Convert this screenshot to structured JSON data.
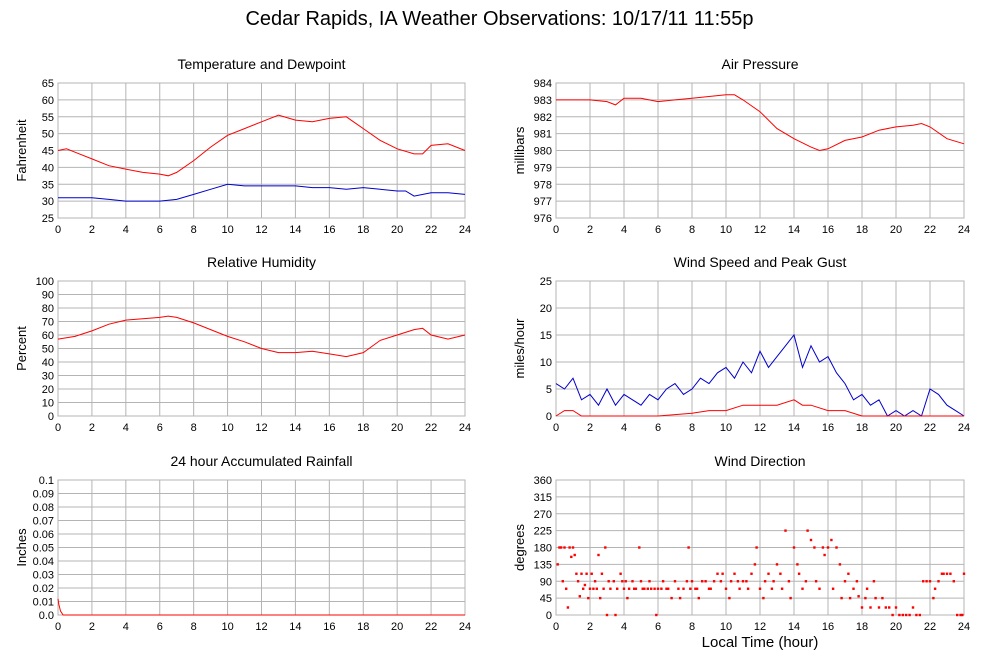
{
  "title": "Cedar Rapids, IA Weather Observations: 10/17/11 11:55p",
  "x_axis_label": "Local Time (hour)",
  "colors": {
    "red": "#ff0000",
    "blue": "#0000cc",
    "grid": "#b4b4b4"
  },
  "chart_data": [
    {
      "id": "temperature",
      "type": "line",
      "title": "Temperature and Dewpoint",
      "ylabel": "Fahrenheit",
      "xlim": [
        0,
        24
      ],
      "ylim": [
        25,
        65
      ],
      "xticks": [
        "0",
        "2",
        "4",
        "6",
        "8",
        "10",
        "12",
        "14",
        "16",
        "18",
        "20",
        "22",
        "24"
      ],
      "yticks": [
        "25",
        "30",
        "35",
        "40",
        "45",
        "50",
        "55",
        "60",
        "65"
      ],
      "grid": true,
      "series": [
        {
          "color": "#ff0000",
          "x": [
            0,
            0.5,
            1,
            2,
            3,
            4,
            5,
            6,
            6.5,
            7,
            8,
            9,
            10,
            11,
            12,
            13,
            14,
            15,
            16,
            17,
            18,
            19,
            20,
            21,
            21.5,
            22,
            23,
            24
          ],
          "y": [
            45,
            45.5,
            44.5,
            42.5,
            40.5,
            39.5,
            38.5,
            38,
            37.5,
            38.5,
            42,
            46,
            49.5,
            51.5,
            53.5,
            55.5,
            54,
            53.5,
            54.5,
            55,
            51.5,
            48,
            45.5,
            44,
            44,
            46.5,
            47,
            45
          ]
        },
        {
          "color": "#0000cc",
          "x": [
            0,
            1,
            2,
            3,
            4,
            5,
            6,
            7,
            8,
            9,
            10,
            11,
            12,
            13,
            14,
            15,
            16,
            17,
            18,
            19,
            20,
            20.5,
            21,
            22,
            23,
            24
          ],
          "y": [
            31,
            31,
            31,
            30.5,
            30,
            30,
            30,
            30.5,
            32,
            33.5,
            35,
            34.5,
            34.5,
            34.5,
            34.5,
            34,
            34,
            33.5,
            34,
            33.5,
            33,
            33,
            31.5,
            32.5,
            32.5,
            32
          ]
        }
      ]
    },
    {
      "id": "pressure",
      "type": "line",
      "title": "Air Pressure",
      "ylabel": "millibars",
      "xlim": [
        0,
        24
      ],
      "ylim": [
        976,
        984
      ],
      "xticks": [
        "0",
        "2",
        "4",
        "6",
        "8",
        "10",
        "12",
        "14",
        "16",
        "18",
        "20",
        "22",
        "24"
      ],
      "yticks": [
        "976",
        "977",
        "978",
        "979",
        "980",
        "981",
        "982",
        "983",
        "984"
      ],
      "grid": true,
      "series": [
        {
          "color": "#ff0000",
          "x": [
            0,
            1,
            2,
            3,
            3.5,
            4,
            5,
            6,
            7,
            8,
            9,
            10,
            10.5,
            11,
            12,
            13,
            14,
            15,
            15.5,
            16,
            17,
            18,
            19,
            20,
            21,
            21.5,
            22,
            23,
            24
          ],
          "y": [
            983,
            983,
            983,
            982.9,
            982.7,
            983.1,
            983.1,
            982.9,
            983,
            983.1,
            983.2,
            983.3,
            983.3,
            983,
            982.3,
            981.3,
            980.7,
            980.2,
            980,
            980.1,
            980.6,
            980.8,
            981.2,
            981.4,
            981.5,
            981.6,
            981.4,
            980.7,
            980.4
          ]
        }
      ]
    },
    {
      "id": "humidity",
      "type": "line",
      "title": "Relative Humidity",
      "ylabel": "Percent",
      "xlim": [
        0,
        24
      ],
      "ylim": [
        0,
        100
      ],
      "xticks": [
        "0",
        "2",
        "4",
        "6",
        "8",
        "10",
        "12",
        "14",
        "16",
        "18",
        "20",
        "22",
        "24"
      ],
      "yticks": [
        "0",
        "10",
        "20",
        "30",
        "40",
        "50",
        "60",
        "70",
        "80",
        "90",
        "100"
      ],
      "grid": true,
      "series": [
        {
          "color": "#ff0000",
          "x": [
            0,
            1,
            2,
            3,
            4,
            5,
            6,
            6.5,
            7,
            8,
            9,
            10,
            11,
            12,
            13,
            14,
            15,
            16,
            17,
            18,
            19,
            20,
            21,
            21.5,
            22,
            23,
            24
          ],
          "y": [
            57,
            59,
            63,
            68,
            71,
            72,
            73,
            74,
            73,
            69,
            64,
            59,
            55,
            50,
            47,
            47,
            48,
            46,
            44,
            47,
            56,
            60,
            64,
            65,
            60,
            57,
            60
          ]
        }
      ]
    },
    {
      "id": "wind",
      "type": "line",
      "title": "Wind Speed and Peak Gust",
      "ylabel": "miles/hour",
      "xlim": [
        0,
        24
      ],
      "ylim": [
        0,
        25
      ],
      "xticks": [
        "0",
        "2",
        "4",
        "6",
        "8",
        "10",
        "12",
        "14",
        "16",
        "18",
        "20",
        "22",
        "24"
      ],
      "yticks": [
        "0",
        "5",
        "10",
        "15",
        "20",
        "25"
      ],
      "grid": true,
      "series": [
        {
          "color": "#0000cc",
          "x": [
            0,
            0.5,
            1,
            1.5,
            2,
            2.5,
            3,
            3.5,
            4,
            4.5,
            5,
            5.5,
            6,
            6.5,
            7,
            7.5,
            8,
            8.5,
            9,
            9.5,
            10,
            10.5,
            11,
            11.5,
            12,
            12.5,
            13,
            13.5,
            14,
            14.5,
            15,
            15.5,
            16,
            16.5,
            17,
            17.5,
            18,
            18.5,
            19,
            19.5,
            20,
            20.5,
            21,
            21.5,
            22,
            22.5,
            23,
            23.5,
            24
          ],
          "y": [
            6,
            5,
            7,
            3,
            4,
            2,
            5,
            2,
            4,
            3,
            2,
            4,
            3,
            5,
            6,
            4,
            5,
            7,
            6,
            8,
            9,
            7,
            10,
            8,
            12,
            9,
            11,
            13,
            15,
            9,
            13,
            10,
            11,
            8,
            6,
            3,
            4,
            2,
            3,
            0,
            1,
            0,
            1,
            0,
            5,
            4,
            2,
            1,
            0
          ]
        },
        {
          "color": "#ff0000",
          "x": [
            0,
            0.5,
            1,
            1.5,
            2,
            4,
            6,
            8,
            9,
            10,
            11,
            12,
            13,
            14,
            14.5,
            15,
            16,
            17,
            18,
            24
          ],
          "y": [
            0,
            1,
            1,
            0,
            0,
            0,
            0,
            0.5,
            1,
            1,
            2,
            2,
            2,
            3,
            2,
            2,
            1,
            1,
            0,
            0
          ]
        }
      ]
    },
    {
      "id": "rainfall",
      "type": "line",
      "title": "24 hour Accumulated Rainfall",
      "ylabel": "Inches",
      "xlim": [
        0,
        24
      ],
      "ylim": [
        0,
        0.1
      ],
      "xticks": [
        "0",
        "2",
        "4",
        "6",
        "8",
        "10",
        "12",
        "14",
        "16",
        "18",
        "20",
        "22",
        "24"
      ],
      "yticks": [
        "0.0",
        "0.01",
        "0.02",
        "0.03",
        "0.04",
        "0.05",
        "0.06",
        "0.07",
        "0.08",
        "0.09",
        "0.1"
      ],
      "grid": true,
      "series": [
        {
          "color": "#ff0000",
          "x": [
            0,
            0.05,
            0.15,
            0.3,
            24
          ],
          "y": [
            0.012,
            0.008,
            0.003,
            0,
            0
          ]
        }
      ]
    },
    {
      "id": "direction",
      "type": "scatter",
      "title": "Wind Direction",
      "ylabel": "degrees",
      "xlim": [
        0,
        24
      ],
      "ylim": [
        0,
        360
      ],
      "xticks": [
        "0",
        "2",
        "4",
        "6",
        "8",
        "10",
        "12",
        "14",
        "16",
        "18",
        "20",
        "22",
        "24"
      ],
      "yticks": [
        "0",
        "45",
        "90",
        "135",
        "180",
        "225",
        "270",
        "315",
        "360"
      ],
      "grid": true,
      "series": [
        {
          "color": "#ff0000",
          "x": [
            0.1,
            0.2,
            0.3,
            0.4,
            0.5,
            0.6,
            0.7,
            0.8,
            0.9,
            1.0,
            1.1,
            1.2,
            1.3,
            1.4,
            1.5,
            1.6,
            1.7,
            1.8,
            1.9,
            2.0,
            2.1,
            2.2,
            2.3,
            2.4,
            2.5,
            2.6,
            2.7,
            2.8,
            2.9,
            3.0,
            3.1,
            3.2,
            3.4,
            3.5,
            3.6,
            3.8,
            3.9,
            4.0,
            4.1,
            4.2,
            4.3,
            4.5,
            4.6,
            4.7,
            4.9,
            5.0,
            5.1,
            5.2,
            5.4,
            5.5,
            5.6,
            5.8,
            5.9,
            6.0,
            6.2,
            6.3,
            6.5,
            6.6,
            6.8,
            7.0,
            7.2,
            7.3,
            7.5,
            7.7,
            7.8,
            7.9,
            8.0,
            8.2,
            8.3,
            8.4,
            8.6,
            8.8,
            9.0,
            9.1,
            9.3,
            9.5,
            9.7,
            9.8,
            10.0,
            10.2,
            10.3,
            10.5,
            10.7,
            10.8,
            11.0,
            11.2,
            11.3,
            11.5,
            11.7,
            11.8,
            12.0,
            12.2,
            12.3,
            12.5,
            12.7,
            12.8,
            13.0,
            13.2,
            13.3,
            13.5,
            13.7,
            13.8,
            14.0,
            14.2,
            14.3,
            14.5,
            14.7,
            14.8,
            15.0,
            15.2,
            15.3,
            15.5,
            15.7,
            15.8,
            16.0,
            16.2,
            16.3,
            16.5,
            16.7,
            16.8,
            17.0,
            17.2,
            17.3,
            17.5,
            17.7,
            17.8,
            18.0,
            18.2,
            18.3,
            18.5,
            18.7,
            18.8,
            19.0,
            19.2,
            19.4,
            19.6,
            19.8,
            20.0,
            20.2,
            20.4,
            20.6,
            20.8,
            21.0,
            21.2,
            21.4,
            21.6,
            21.8,
            22.0,
            22.2,
            22.3,
            22.5,
            22.7,
            22.8,
            23.0,
            23.2,
            23.4,
            23.6,
            23.8,
            23.9,
            24.0
          ],
          "y": [
            135,
            180,
            180,
            90,
            180,
            70,
            20,
            180,
            155,
            180,
            160,
            110,
            90,
            50,
            110,
            70,
            80,
            110,
            45,
            70,
            110,
            70,
            90,
            70,
            160,
            45,
            110,
            70,
            180,
            0,
            90,
            70,
            90,
            0,
            70,
            110,
            90,
            70,
            90,
            45,
            70,
            90,
            70,
            70,
            180,
            90,
            70,
            70,
            70,
            90,
            70,
            70,
            0,
            70,
            70,
            90,
            70,
            70,
            45,
            90,
            70,
            45,
            70,
            90,
            180,
            70,
            90,
            70,
            70,
            45,
            90,
            90,
            70,
            70,
            90,
            110,
            90,
            110,
            70,
            45,
            90,
            110,
            90,
            70,
            90,
            90,
            70,
            110,
            135,
            180,
            70,
            45,
            90,
            110,
            70,
            90,
            135,
            110,
            70,
            225,
            90,
            45,
            180,
            135,
            110,
            70,
            90,
            225,
            200,
            180,
            90,
            70,
            180,
            160,
            180,
            200,
            70,
            180,
            135,
            45,
            90,
            110,
            45,
            70,
            90,
            50,
            20,
            45,
            70,
            20,
            90,
            45,
            20,
            45,
            20,
            20,
            0,
            20,
            0,
            0,
            0,
            0,
            20,
            0,
            0,
            90,
            90,
            90,
            45,
            70,
            90,
            110,
            110,
            110,
            110,
            90,
            0,
            0,
            0,
            110
          ]
        }
      ]
    }
  ]
}
